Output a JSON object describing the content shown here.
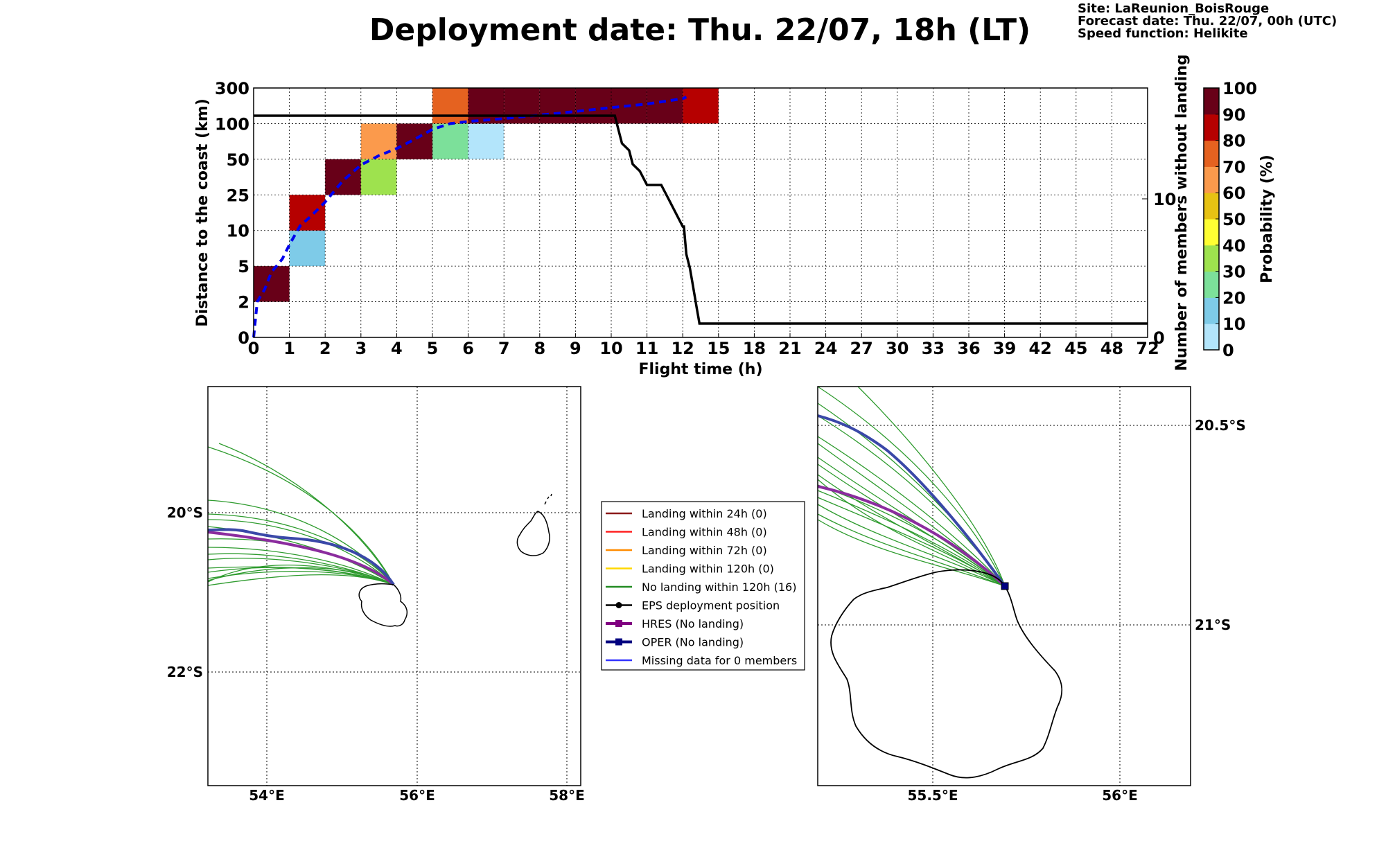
{
  "header": {
    "title": "Deployment date: Thu. 22/07, 18h (LT)",
    "site": "Site: LaReunion_BoisRouge",
    "forecast": "Forecast date: Thu. 22/07, 00h (UTC)",
    "speed": "Speed function: Helikite"
  },
  "chart_data": [
    {
      "type": "heatmap",
      "xlabel": "Flight time (h)",
      "ylabel": "Distance to the coast (km)",
      "y2label": "Number of members without landing",
      "x_ticks": [
        "0",
        "1",
        "2",
        "3",
        "4",
        "5",
        "6",
        "7",
        "8",
        "9",
        "10",
        "11",
        "12",
        "15",
        "18",
        "21",
        "24",
        "27",
        "30",
        "33",
        "36",
        "39",
        "42",
        "45",
        "48",
        "72"
      ],
      "y_ticks": [
        "0",
        "2",
        "5",
        "10",
        "25",
        "50",
        "100",
        "300"
      ],
      "y2_ticks": [
        "0",
        "10"
      ],
      "y2lim": [
        0,
        18
      ],
      "grid": true,
      "cells": [
        {
          "x": "0-1",
          "y": "2-5",
          "prob": 95
        },
        {
          "x": "1-2",
          "y": "5-10",
          "prob": 15
        },
        {
          "x": "1-2",
          "y": "10-25",
          "prob": 85
        },
        {
          "x": "2-3",
          "y": "25-50",
          "prob": 95
        },
        {
          "x": "3-4",
          "y": "25-50",
          "prob": 35
        },
        {
          "x": "3-4",
          "y": "50-100",
          "prob": 65
        },
        {
          "x": "4-5",
          "y": "50-100",
          "prob": 95
        },
        {
          "x": "5-6",
          "y": "50-100",
          "prob": 25
        },
        {
          "x": "5-6",
          "y": "100-300",
          "prob": 75
        },
        {
          "x": "6-7",
          "y": "50-100",
          "prob": 5
        },
        {
          "x": "6-7",
          "y": "100-300",
          "prob": 95
        },
        {
          "x": "7-8",
          "y": "100-300",
          "prob": 95
        },
        {
          "x": "8-9",
          "y": "100-300",
          "prob": 95
        },
        {
          "x": "9-10",
          "y": "100-300",
          "prob": 95
        },
        {
          "x": "10-11",
          "y": "100-300",
          "prob": 95
        },
        {
          "x": "11-12",
          "y": "100-300",
          "prob": 95
        },
        {
          "x": "12-15",
          "y": "100-300",
          "prob": 85
        }
      ],
      "mean_distance_curve": {
        "style": "dashed",
        "color": "#0000ee",
        "points": [
          [
            0,
            0
          ],
          [
            0.1,
            2
          ],
          [
            0.3,
            3
          ],
          [
            0.5,
            4.5
          ],
          [
            0.8,
            6
          ],
          [
            1,
            8
          ],
          [
            1.3,
            12
          ],
          [
            1.6,
            16
          ],
          [
            2,
            22
          ],
          [
            2.5,
            35
          ],
          [
            3,
            46
          ],
          [
            3.5,
            55
          ],
          [
            4,
            65
          ],
          [
            4.5,
            78
          ],
          [
            5,
            92
          ],
          [
            5.5,
            100
          ],
          [
            6,
            112
          ],
          [
            7,
            128
          ],
          [
            8,
            148
          ],
          [
            9,
            168
          ],
          [
            10,
            190
          ],
          [
            11,
            210
          ],
          [
            12,
            240
          ],
          [
            12.3,
            250
          ]
        ]
      },
      "members_without_landing": {
        "color": "#000000",
        "points": [
          [
            0,
            16
          ],
          [
            10.1,
            16
          ],
          [
            10.3,
            14
          ],
          [
            10.5,
            13.5
          ],
          [
            10.6,
            12.5
          ],
          [
            10.8,
            12
          ],
          [
            11,
            11
          ],
          [
            11.4,
            11
          ],
          [
            11.6,
            10
          ],
          [
            11.8,
            9
          ],
          [
            12,
            8
          ],
          [
            12.1,
            8
          ],
          [
            12.2,
            7
          ],
          [
            12.3,
            6
          ],
          [
            12.6,
            5
          ],
          [
            12.8,
            4
          ],
          [
            13,
            3
          ],
          [
            13.2,
            2
          ],
          [
            13.3,
            1.5
          ],
          [
            13.4,
            1
          ],
          [
            72,
            1
          ]
        ]
      },
      "colorbar": {
        "label": "Probability (%)",
        "ticks": [
          "0",
          "10",
          "20",
          "30",
          "40",
          "50",
          "60",
          "70",
          "80",
          "90",
          "100"
        ],
        "colors": [
          "#b3e5fb",
          "#7ecbe8",
          "#7ce09a",
          "#9ee24e",
          "#ffff33",
          "#e7c213",
          "#fb9a4c",
          "#e56220",
          "#b60000",
          "#680018"
        ]
      }
    },
    {
      "type": "map",
      "x_ticks": [
        "54°E",
        "56°E",
        "58°E"
      ],
      "y_ticks": [
        "20°S",
        "22°S"
      ],
      "lon_range": [
        53.2,
        58.2
      ],
      "lat_range": [
        -23.5,
        -18.5
      ]
    },
    {
      "type": "map",
      "x_ticks": [
        "55.5°E",
        "56°E"
      ],
      "y_ticks": [
        "20.5°S",
        "21°S"
      ],
      "lon_range": [
        55.2,
        56.2
      ],
      "lat_range": [
        -21.8,
        -20.3
      ],
      "deployment_marker": {
        "lon": 55.7,
        "lat": -20.95
      }
    }
  ],
  "legend": {
    "items": [
      {
        "label": "Landing within 24h (0)",
        "color": "#8b1a1a",
        "marker": "none"
      },
      {
        "label": "Landing within 48h (0)",
        "color": "#ff2020",
        "marker": "none"
      },
      {
        "label": "Landing within 72h (0)",
        "color": "#ff8c00",
        "marker": "none"
      },
      {
        "label": "Landing within 120h (0)",
        "color": "#ffd700",
        "marker": "none"
      },
      {
        "label": "No landing within 120h (16)",
        "color": "#228b22",
        "marker": "none"
      },
      {
        "label": "EPS deployment position",
        "color": "#000000",
        "marker": "circle"
      },
      {
        "label": "HRES (No landing)",
        "color": "#800080",
        "marker": "square"
      },
      {
        "label": "OPER (No landing)",
        "color": "#000080",
        "marker": "square"
      },
      {
        "label": "Missing data for 0 members",
        "color": "#3333ff",
        "marker": "none"
      }
    ]
  }
}
